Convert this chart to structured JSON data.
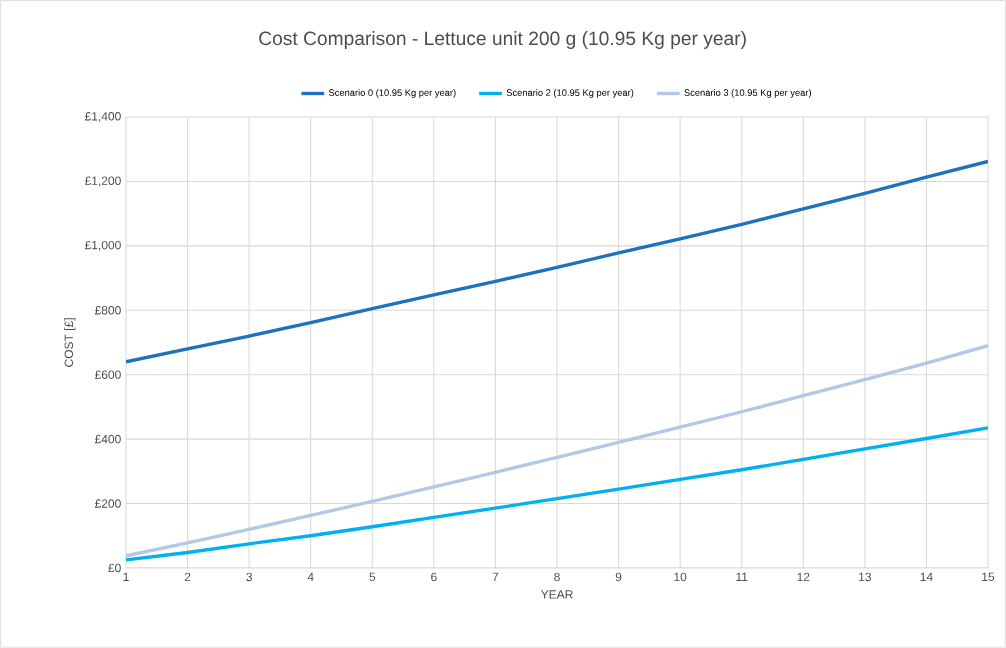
{
  "chart_data": {
    "type": "line",
    "title": "Cost Comparison - Lettuce unit 200 g (10.95 Kg per year)",
    "xlabel": "YEAR",
    "ylabel": "COST [£]",
    "x": [
      1,
      2,
      3,
      4,
      5,
      6,
      7,
      8,
      9,
      10,
      11,
      12,
      13,
      14,
      15
    ],
    "series": [
      {
        "name": "Scenario 0 (10.95 Kg per year)",
        "color": "#2070c0",
        "values": [
          640,
          680,
          720,
          762,
          805,
          848,
          890,
          933,
          978,
          1022,
          1067,
          1115,
          1163,
          1213,
          1262
        ]
      },
      {
        "name": "Scenario 2 (10.95 Kg per year)",
        "color": "#00b0f0",
        "values": [
          25,
          48,
          75,
          100,
          128,
          157,
          186,
          215,
          245,
          275,
          305,
          337,
          370,
          402,
          435
        ]
      },
      {
        "name": "Scenario 3 (10.95 Kg per year)",
        "color": "#b4c7e7",
        "values": [
          38,
          78,
          120,
          163,
          207,
          252,
          297,
          343,
          390,
          437,
          485,
          535,
          585,
          636,
          690
        ]
      }
    ],
    "xlim": [
      1,
      15
    ],
    "xticks": [
      1,
      2,
      3,
      4,
      5,
      6,
      7,
      8,
      9,
      10,
      11,
      12,
      13,
      14,
      15
    ],
    "ylim": [
      0,
      1400
    ],
    "yticks": [
      {
        "value": 0,
        "label": "£0"
      },
      {
        "value": 200,
        "label": "£200"
      },
      {
        "value": 400,
        "label": "£400"
      },
      {
        "value": 600,
        "label": "£600"
      },
      {
        "value": 800,
        "label": "£800"
      },
      {
        "value": 1000,
        "label": "£1,000"
      },
      {
        "value": 1200,
        "label": "£1,200"
      },
      {
        "value": 1400,
        "label": "£1,400"
      }
    ],
    "grid": true,
    "legend": "top",
    "line_style": "solid"
  }
}
